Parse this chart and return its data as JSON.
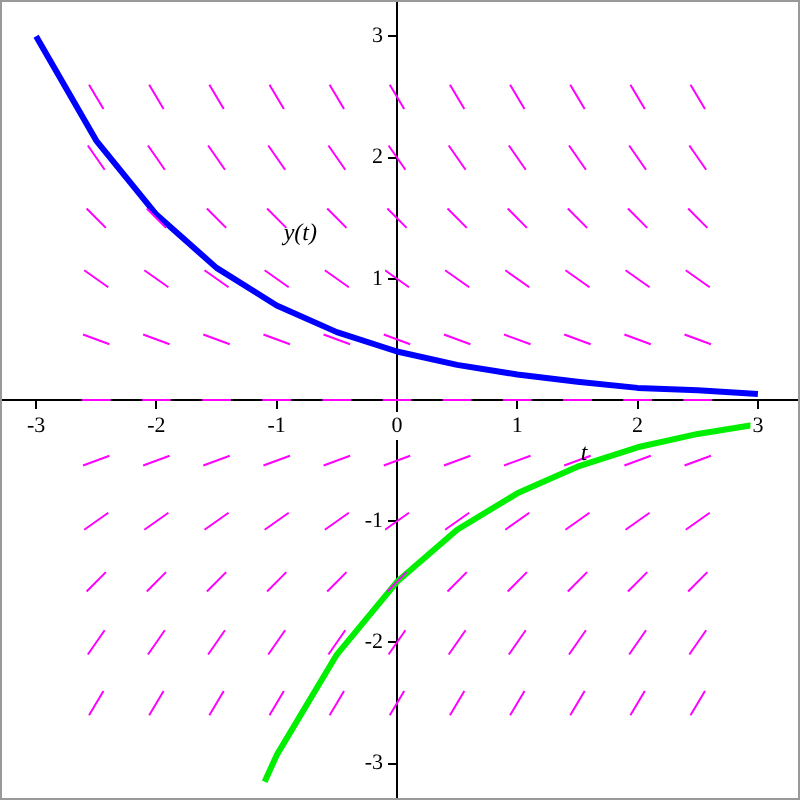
{
  "chart_data": {
    "type": "line",
    "xlabel": "t",
    "ylabel": "y(t)",
    "xlim": [
      -3.3,
      3.35
    ],
    "ylim": [
      -3.3,
      3.3
    ],
    "xticks": [
      -3,
      -2,
      -1,
      0,
      1,
      2,
      3
    ],
    "yticks": [
      -3,
      -2,
      -1,
      1,
      2,
      3
    ],
    "grid": false,
    "legend": false,
    "marker": "none",
    "series": [
      {
        "color": "#ff00ff",
        "x": [
          -2.56,
          -2.44,
          -2.25,
          -2.06,
          -1.94,
          -1.75,
          -1.56,
          -1.44,
          -1.25,
          -1.06,
          -0.94,
          -0.75,
          -0.56,
          -0.44,
          -0.25,
          -0.06,
          0.06,
          0.25,
          0.44,
          0.56,
          0.75,
          0.94,
          1.06,
          1.25,
          1.44,
          1.56,
          1.75,
          1.94,
          2.06,
          2.25,
          2.44,
          2.56
        ],
        "values": [
          2.6,
          2.4,
          null,
          2.6,
          2.4,
          null,
          2.6,
          2.4,
          null,
          2.6,
          2.4,
          null,
          2.6,
          2.4,
          null,
          2.6,
          2.4,
          null,
          2.6,
          2.4,
          null,
          2.6,
          2.4,
          null,
          2.6,
          2.4,
          null,
          2.6,
          2.4,
          null,
          2.6,
          2.4
        ]
      },
      {
        "color": "#ff00ff",
        "x": [
          -2.57,
          -2.43,
          -2.25,
          -2.07,
          -1.93,
          -1.75,
          -1.57,
          -1.43,
          -1.25,
          -1.07,
          -0.93,
          -0.75,
          -0.57,
          -0.43,
          -0.25,
          -0.07,
          0.07,
          0.25,
          0.43,
          0.57,
          0.75,
          0.93,
          1.07,
          1.25,
          1.43,
          1.57,
          1.75,
          1.93,
          2.07,
          2.25,
          2.43,
          2.57
        ],
        "values": [
          2.1,
          1.9,
          null,
          2.1,
          1.9,
          null,
          2.1,
          1.9,
          null,
          2.1,
          1.9,
          null,
          2.1,
          1.9,
          null,
          2.1,
          1.9,
          null,
          2.1,
          1.9,
          null,
          2.1,
          1.9,
          null,
          2.1,
          1.9,
          null,
          2.1,
          1.9,
          null,
          2.1,
          1.9
        ]
      },
      {
        "color": "#ff00ff",
        "x": [
          -2.58,
          -2.42,
          -2.25,
          -2.08,
          -1.92,
          -1.75,
          -1.58,
          -1.42,
          -1.25,
          -1.08,
          -0.92,
          -0.75,
          -0.58,
          -0.42,
          -0.25,
          -0.08,
          0.08,
          0.25,
          0.42,
          0.58,
          0.75,
          0.92,
          1.08,
          1.25,
          1.42,
          1.58,
          1.75,
          1.92,
          2.08,
          2.25,
          2.42,
          2.58
        ],
        "values": [
          1.58,
          1.42,
          null,
          1.58,
          1.42,
          null,
          1.58,
          1.42,
          null,
          1.58,
          1.42,
          null,
          1.58,
          1.42,
          null,
          1.58,
          1.42,
          null,
          1.58,
          1.42,
          null,
          1.58,
          1.42,
          null,
          1.58,
          1.42,
          null,
          1.58,
          1.42,
          null,
          1.58,
          1.42
        ]
      },
      {
        "color": "#ff00ff",
        "x": [
          -2.6,
          -2.4,
          -2.25,
          -2.1,
          -1.9,
          -1.75,
          -1.6,
          -1.4,
          -1.25,
          -1.1,
          -0.9,
          -0.75,
          -0.6,
          -0.4,
          -0.25,
          -0.1,
          0.1,
          0.25,
          0.4,
          0.6,
          0.75,
          0.9,
          1.1,
          1.25,
          1.4,
          1.6,
          1.75,
          1.9,
          2.1,
          2.25,
          2.4,
          2.6
        ],
        "values": [
          1.07,
          0.93,
          null,
          1.07,
          0.93,
          null,
          1.07,
          0.93,
          null,
          1.07,
          0.93,
          null,
          1.07,
          0.93,
          null,
          1.07,
          0.93,
          null,
          1.07,
          0.93,
          null,
          1.07,
          0.93,
          null,
          1.07,
          0.93,
          null,
          1.07,
          0.93,
          null,
          1.07,
          0.93
        ]
      },
      {
        "color": "#ff00ff",
        "x": [
          -2.61,
          -2.39,
          -2.25,
          -2.11,
          -1.89,
          -1.75,
          -1.61,
          -1.39,
          -1.25,
          -1.11,
          -0.89,
          -0.75,
          -0.61,
          -0.39,
          -0.25,
          -0.11,
          0.11,
          0.25,
          0.39,
          0.61,
          0.75,
          0.89,
          1.11,
          1.25,
          1.39,
          1.61,
          1.75,
          1.89,
          2.11,
          2.25,
          2.39,
          2.61
        ],
        "values": [
          0.54,
          0.46,
          null,
          0.54,
          0.46,
          null,
          0.54,
          0.46,
          null,
          0.54,
          0.46,
          null,
          0.54,
          0.46,
          null,
          0.54,
          0.46,
          null,
          0.54,
          0.46,
          null,
          0.54,
          0.46,
          null,
          0.54,
          0.46,
          null,
          0.54,
          0.46,
          null,
          0.54,
          0.46
        ]
      },
      {
        "color": "#ff00ff",
        "x": [
          -2.62,
          -2.38,
          -2.25,
          -2.12,
          -1.88,
          -1.75,
          -1.62,
          -1.38,
          -1.25,
          -1.12,
          -0.88,
          -0.75,
          -0.62,
          -0.38,
          -0.25,
          -0.12,
          0.12,
          0.25,
          0.38,
          0.62,
          0.75,
          0.88,
          1.12,
          1.25,
          1.38,
          1.62,
          1.75,
          1.88,
          2.12,
          2.25,
          2.38,
          2.62
        ],
        "values": [
          0,
          0,
          null,
          0,
          0,
          null,
          0,
          0,
          null,
          0,
          0,
          null,
          0,
          0,
          null,
          0,
          0,
          null,
          0,
          0,
          null,
          0,
          0,
          null,
          0,
          0,
          null,
          0,
          0,
          null,
          0,
          0
        ]
      },
      {
        "color": "#ff00ff",
        "x": [
          -2.61,
          -2.39,
          -2.25,
          -2.11,
          -1.89,
          -1.75,
          -1.61,
          -1.39,
          -1.25,
          -1.11,
          -0.89,
          -0.75,
          -0.61,
          -0.39,
          -0.25,
          -0.11,
          0.11,
          0.25,
          0.39,
          0.61,
          0.75,
          0.89,
          1.11,
          1.25,
          1.39,
          1.61,
          1.75,
          1.89,
          2.11,
          2.25,
          2.39,
          2.61
        ],
        "values": [
          -0.54,
          -0.46,
          null,
          -0.54,
          -0.46,
          null,
          -0.54,
          -0.46,
          null,
          -0.54,
          -0.46,
          null,
          -0.54,
          -0.46,
          null,
          -0.54,
          -0.46,
          null,
          -0.54,
          -0.46,
          null,
          -0.54,
          -0.46,
          null,
          -0.54,
          -0.46,
          null,
          -0.54,
          -0.46,
          null,
          -0.54,
          -0.46
        ]
      },
      {
        "color": "#ff00ff",
        "x": [
          -2.6,
          -2.4,
          -2.25,
          -2.1,
          -1.9,
          -1.75,
          -1.6,
          -1.4,
          -1.25,
          -1.1,
          -0.9,
          -0.75,
          -0.6,
          -0.4,
          -0.25,
          -0.1,
          0.1,
          0.25,
          0.4,
          0.6,
          0.75,
          0.9,
          1.1,
          1.25,
          1.4,
          1.6,
          1.75,
          1.9,
          2.1,
          2.25,
          2.4,
          2.6
        ],
        "values": [
          -1.07,
          -0.93,
          null,
          -1.07,
          -0.93,
          null,
          -1.07,
          -0.93,
          null,
          -1.07,
          -0.93,
          null,
          -1.07,
          -0.93,
          null,
          -1.07,
          -0.93,
          null,
          -1.07,
          -0.93,
          null,
          -1.07,
          -0.93,
          null,
          -1.07,
          -0.93,
          null,
          -1.07,
          -0.93,
          null,
          -1.07,
          -0.93
        ]
      },
      {
        "color": "#ff00ff",
        "x": [
          -2.58,
          -2.42,
          -2.25,
          -2.08,
          -1.92,
          -1.75,
          -1.58,
          -1.42,
          -1.25,
          -1.08,
          -0.92,
          -0.75,
          -0.58,
          -0.42,
          -0.25,
          -0.08,
          0.08,
          0.25,
          0.42,
          0.58,
          0.75,
          0.92,
          1.08,
          1.25,
          1.42,
          1.58,
          1.75,
          1.92,
          2.08,
          2.25,
          2.42,
          2.58
        ],
        "values": [
          -1.58,
          -1.42,
          null,
          -1.58,
          -1.42,
          null,
          -1.58,
          -1.42,
          null,
          -1.58,
          -1.42,
          null,
          -1.58,
          -1.42,
          null,
          -1.58,
          -1.42,
          null,
          -1.58,
          -1.42,
          null,
          -1.58,
          -1.42,
          null,
          -1.58,
          -1.42,
          null,
          -1.58,
          -1.42,
          null,
          -1.58,
          -1.42
        ]
      },
      {
        "color": "#ff00ff",
        "x": [
          -2.57,
          -2.43,
          -2.25,
          -2.07,
          -1.93,
          -1.75,
          -1.57,
          -1.43,
          -1.25,
          -1.07,
          -0.93,
          -0.75,
          -0.57,
          -0.43,
          -0.25,
          -0.07,
          0.07,
          0.25,
          0.43,
          0.57,
          0.75,
          0.93,
          1.07,
          1.25,
          1.43,
          1.57,
          1.75,
          1.93,
          2.07,
          2.25,
          2.43,
          2.57
        ],
        "values": [
          -2.1,
          -1.9,
          null,
          -2.1,
          -1.9,
          null,
          -2.1,
          -1.9,
          null,
          -2.1,
          -1.9,
          null,
          -2.1,
          -1.9,
          null,
          -2.1,
          -1.9,
          null,
          -2.1,
          -1.9,
          null,
          -2.1,
          -1.9,
          null,
          -2.1,
          -1.9,
          null,
          -2.1,
          -1.9,
          null,
          -2.1,
          -1.9
        ]
      },
      {
        "color": "#ff00ff",
        "x": [
          -2.56,
          -2.44,
          -2.25,
          -2.06,
          -1.94,
          -1.75,
          -1.56,
          -1.44,
          -1.25,
          -1.06,
          -0.94,
          -0.75,
          -0.56,
          -0.44,
          -0.25,
          -0.06,
          0.06,
          0.25,
          0.44,
          0.56,
          0.75,
          0.94,
          1.06,
          1.25,
          1.44,
          1.56,
          1.75,
          1.94,
          2.06,
          2.25,
          2.44,
          2.56
        ],
        "values": [
          -2.6,
          -2.4,
          null,
          -2.6,
          -2.4,
          null,
          -2.6,
          -2.4,
          null,
          -2.6,
          -2.4,
          null,
          -2.6,
          -2.4,
          null,
          -2.6,
          -2.4,
          null,
          -2.6,
          -2.4,
          null,
          -2.6,
          -2.4,
          null,
          -2.6,
          -2.4,
          null,
          -2.6,
          -2.4,
          null,
          -2.6,
          -2.4
        ]
      },
      {
        "color": "#0000ff",
        "x": [
          -3,
          -2.5,
          -2,
          -1.5,
          -1,
          -0.5,
          0,
          0.5,
          1,
          1.5,
          2,
          2.5,
          3
        ],
        "values": [
          3,
          2.14,
          1.53,
          1.09,
          0.78,
          0.56,
          0.4,
          0.29,
          0.21,
          0.15,
          0.1,
          0.08,
          0.05
        ]
      },
      {
        "color": "#00ee00",
        "x": [
          -1.1,
          -1,
          -0.5,
          0,
          0.5,
          1,
          1.5,
          2,
          2.5,
          3
        ],
        "values": [
          -3.15,
          -2.93,
          -2.1,
          -1.5,
          -1.07,
          -0.77,
          -0.55,
          -0.39,
          -0.28,
          -0.2
        ]
      }
    ]
  }
}
